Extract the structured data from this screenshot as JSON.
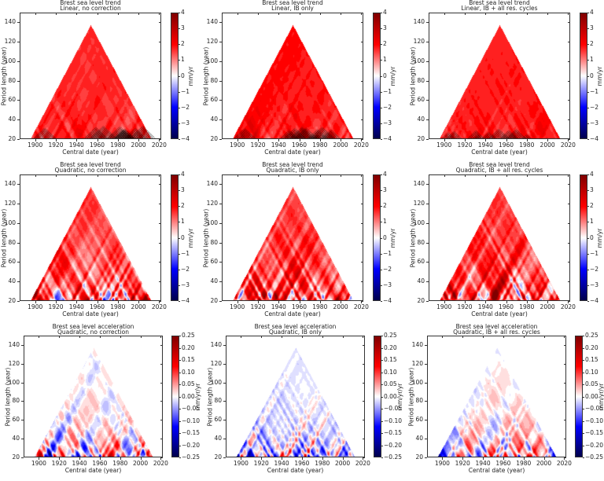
{
  "chart_data": [
    {
      "type": "heatmap",
      "title": "Brest sea level trend",
      "subtitle": "Linear, no correction",
      "xlabel": "Central date (year)",
      "ylabel": "Period length (year)",
      "colorbar_label": "mm/yr",
      "xlim": [
        1885,
        2022
      ],
      "ylim": [
        20,
        150
      ],
      "clim": [
        -4,
        4
      ],
      "hatched": true
    },
    {
      "type": "heatmap",
      "title": "Brest sea level trend",
      "subtitle": "Linear, IB only",
      "xlabel": "Central date (year)",
      "ylabel": "Period length (year)",
      "colorbar_label": "mm/yr",
      "xlim": [
        1885,
        2022
      ],
      "ylim": [
        20,
        150
      ],
      "clim": [
        -4,
        4
      ],
      "hatched": true
    },
    {
      "type": "heatmap",
      "title": "Brest sea level trend",
      "subtitle": "Linear, IB + all res. cycles",
      "xlabel": "Central date (year)",
      "ylabel": "Period length (year)",
      "colorbar_label": "mm/yr",
      "xlim": [
        1885,
        2022
      ],
      "ylim": [
        20,
        150
      ],
      "clim": [
        -4,
        4
      ],
      "hatched": true
    },
    {
      "type": "heatmap",
      "title": "Brest sea level trend",
      "subtitle": "Quadratic, no correction",
      "xlabel": "Central date (year)",
      "ylabel": "Period length (year)",
      "colorbar_label": "mm/yr",
      "xlim": [
        1885,
        2022
      ],
      "ylim": [
        20,
        150
      ],
      "clim": [
        -4,
        4
      ],
      "hatched": false
    },
    {
      "type": "heatmap",
      "title": "Brest sea level trend",
      "subtitle": "Quadratic, IB only",
      "xlabel": "Central date (year)",
      "ylabel": "Period length (year)",
      "colorbar_label": "mm/yr",
      "xlim": [
        1885,
        2022
      ],
      "ylim": [
        20,
        150
      ],
      "clim": [
        -4,
        4
      ],
      "hatched": false
    },
    {
      "type": "heatmap",
      "title": "Brest sea level trend",
      "subtitle": "Quadratic, IB + all res. cycles",
      "xlabel": "Central date (year)",
      "ylabel": "Period length (year)",
      "colorbar_label": "mm/yr",
      "xlim": [
        1885,
        2022
      ],
      "ylim": [
        20,
        150
      ],
      "clim": [
        -4,
        4
      ],
      "hatched": false
    },
    {
      "type": "heatmap",
      "title": "Brest sea level acceleration",
      "subtitle": "Quadratic, no correction",
      "xlabel": "Central date (year)",
      "ylabel": "Period length (year)",
      "colorbar_label": "mm/yr/yr",
      "xlim": [
        1885,
        2022
      ],
      "ylim": [
        20,
        150
      ],
      "clim": [
        -0.25,
        0.25
      ],
      "hatched": false
    },
    {
      "type": "heatmap",
      "title": "Brest sea level acceleration",
      "subtitle": "Quadratic, IB only",
      "xlabel": "Central date (year)",
      "ylabel": "Period length (year)",
      "colorbar_label": "mm/yr/yr",
      "xlim": [
        1885,
        2022
      ],
      "ylim": [
        20,
        150
      ],
      "clim": [
        -0.25,
        0.25
      ],
      "hatched": false
    },
    {
      "type": "heatmap",
      "title": "Brest sea level acceleration",
      "subtitle": "Quadratic, IB + all res. cycles",
      "xlabel": "Central date (year)",
      "ylabel": "Period length (year)",
      "colorbar_label": "mm/yr/yr",
      "xlim": [
        1885,
        2022
      ],
      "ylim": [
        20,
        150
      ],
      "clim": [
        -0.25,
        0.25
      ],
      "hatched": false
    }
  ],
  "x_ticks": [
    "1900",
    "1920",
    "1940",
    "1960",
    "1980",
    "2000",
    "2020"
  ],
  "y_ticks": [
    "20",
    "40",
    "60",
    "80",
    "100",
    "120",
    "140"
  ],
  "trend_cbar_ticks": [
    "4",
    "3",
    "2",
    "1",
    "0",
    "−1",
    "−2",
    "−3",
    "−4"
  ],
  "accel_cbar_ticks": [
    "0.25",
    "0.20",
    "0.15",
    "0.10",
    "0.05",
    "0.00",
    "−0.05",
    "−0.10",
    "−0.15",
    "−0.20",
    "−0.25"
  ],
  "colormap": "seismic",
  "triangle": {
    "central_date_range_at_20yr": [
      1895,
      2012
    ],
    "apex_central_date": 1954,
    "apex_period": 137
  }
}
